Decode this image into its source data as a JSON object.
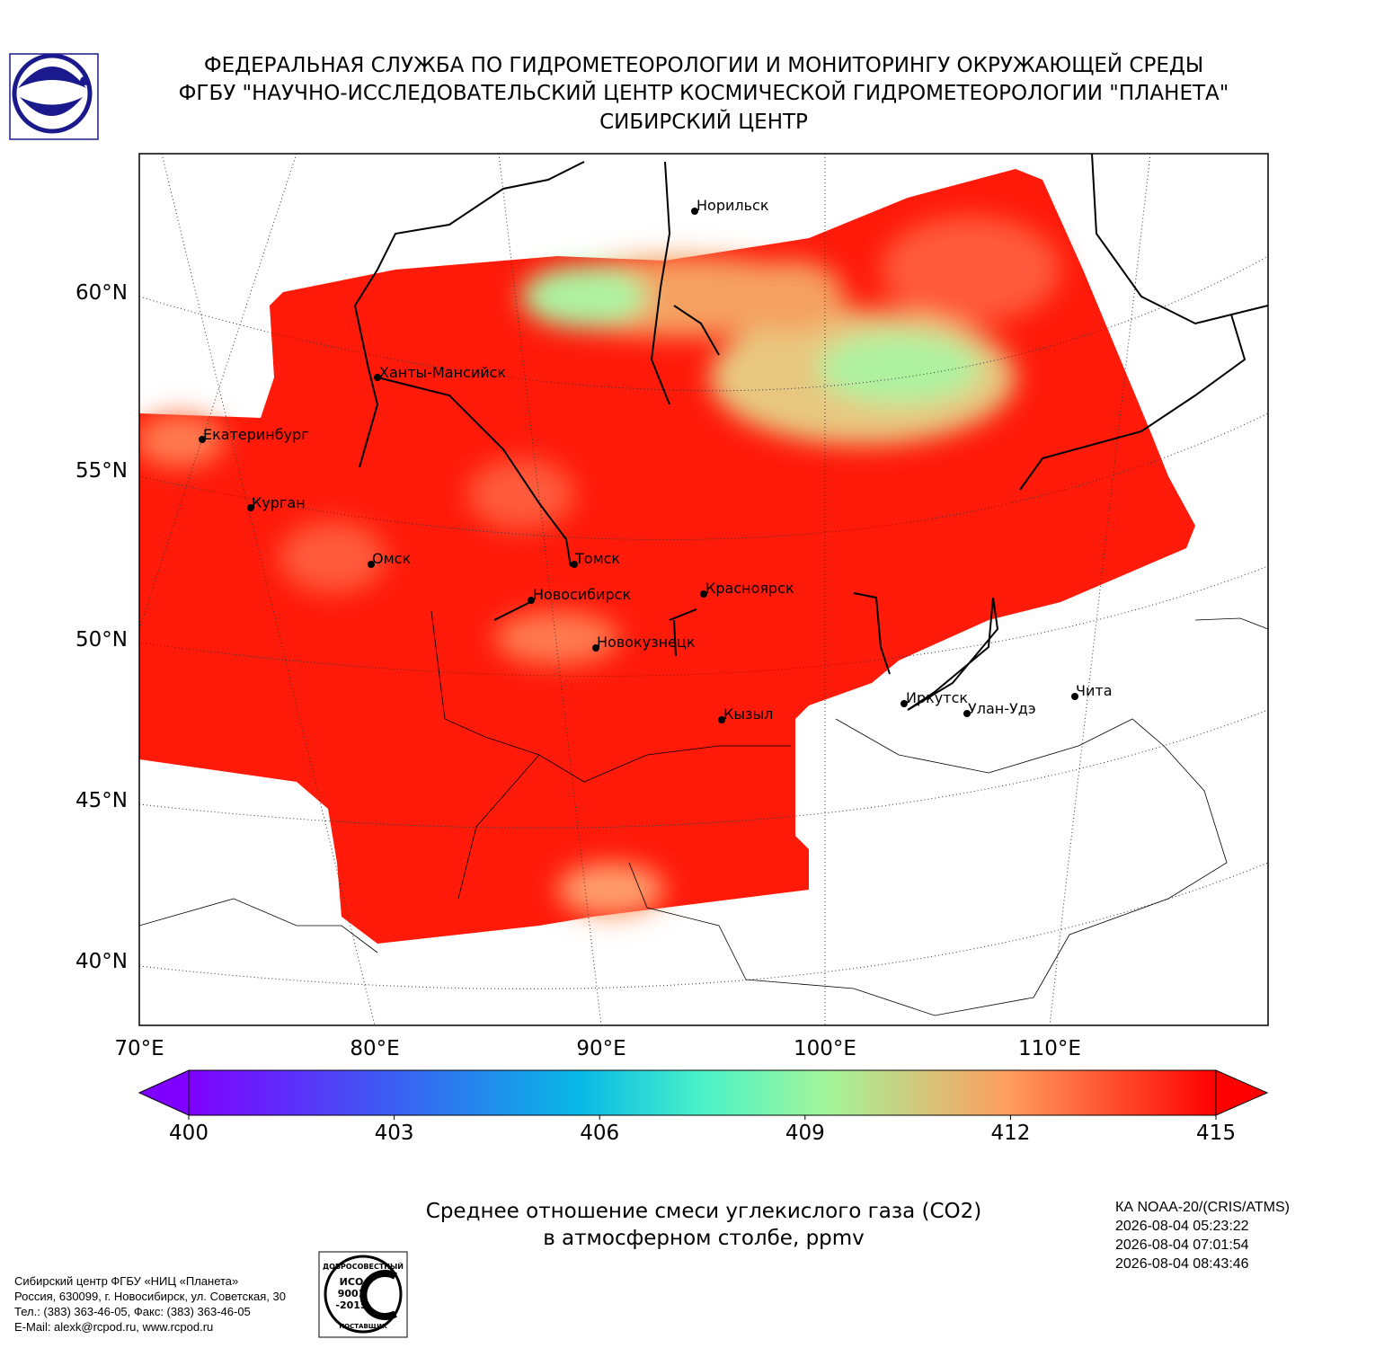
{
  "header": {
    "lines": [
      "ФЕДЕРАЛЬНАЯ СЛУЖБА ПО ГИДРОМЕТЕОРОЛОГИИ И МОНИТОРИНГУ ОКРУЖАЮЩЕЙ СРЕДЫ",
      "ФГБУ \"НАУЧНО-ИССЛЕДОВАТЕЛЬСКИЙ ЦЕНТР КОСМИЧЕСКОЙ ГИДРОМЕТЕОРОЛОГИИ \"ПЛАНЕТА\"",
      "СИБИРСКИЙ ЦЕНТР"
    ]
  },
  "map": {
    "lat_labels": [
      {
        "value": 60,
        "label": "60°N"
      },
      {
        "value": 55,
        "label": "55°N"
      },
      {
        "value": 50,
        "label": "50°N"
      },
      {
        "value": 45,
        "label": "45°N"
      },
      {
        "value": 40,
        "label": "40°N"
      }
    ],
    "lon_labels": [
      {
        "value": 70,
        "label": "70°E"
      },
      {
        "value": 80,
        "label": "80°E"
      },
      {
        "value": 90,
        "label": "90°E"
      },
      {
        "value": 100,
        "label": "100°E"
      },
      {
        "value": 110,
        "label": "110°E"
      }
    ],
    "cities": [
      "Норильск",
      "Ханты-Мансийск",
      "Екатеринбург",
      "Курган",
      "Омск",
      "Томск",
      "Новосибирск",
      "Красноярск",
      "Новокузнецк",
      "Кызыл",
      "Иркутск",
      "Улан-Удэ",
      "Чита"
    ]
  },
  "colorbar": {
    "lim": [
      400,
      415
    ],
    "ticks": [
      400,
      403,
      406,
      409,
      412,
      415
    ]
  },
  "caption": [
    "Среднее отношение смеси углекислого газа (CO2)",
    "в атмосферном столбе, ppmv"
  ],
  "satellite": [
    "КА NOAA-20/(CRIS/ATMS)",
    "2026-08-04 05:23:22",
    "2026-08-04 07:01:54",
    "2026-08-04 08:43:46"
  ],
  "footer": [
    "Сибирский центр ФГБУ «НИЦ «Планета»",
    "Россия, 630099, г. Новосибирск, ул. Советская, 30",
    "Тел.: (383) 363-46-05, Факс: (383) 363-46-05",
    "E-Mail: alexk@rcpod.ru, www.rcpod.ru"
  ],
  "iso_logo": {
    "top": "ДОБРОСОВЕСТНЫЙ",
    "lines": [
      "ИСО",
      "9001",
      "-2015"
    ],
    "bottom": "ПОСТАВЩИК"
  }
}
